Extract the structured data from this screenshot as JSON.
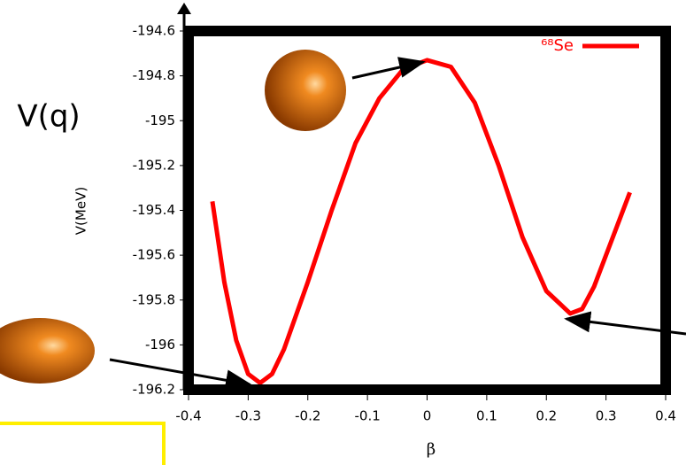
{
  "chart_data": {
    "type": "line",
    "ylabel": "V(MeV)",
    "xlabel": "β",
    "annotation": "V(q)",
    "x": [
      -0.36,
      -0.34,
      -0.32,
      -0.3,
      -0.28,
      -0.26,
      -0.24,
      -0.2,
      -0.16,
      -0.12,
      -0.08,
      -0.04,
      0.0,
      0.04,
      0.08,
      0.12,
      0.16,
      0.2,
      0.24,
      0.26,
      0.28,
      0.3,
      0.32,
      0.34
    ],
    "series": [
      {
        "name": "⁶⁸Se",
        "color": "#ff0000",
        "values": [
          -195.36,
          -195.72,
          -195.98,
          -196.13,
          -196.17,
          -196.13,
          -196.02,
          -195.72,
          -195.4,
          -195.1,
          -194.9,
          -194.77,
          -194.73,
          -194.76,
          -194.92,
          -195.2,
          -195.52,
          -195.76,
          -195.86,
          -195.84,
          -195.74,
          -195.6,
          -195.46,
          -195.32
        ]
      }
    ],
    "xlim": [
      -0.4,
      0.4
    ],
    "xticks": [
      -0.4,
      -0.3,
      -0.2,
      -0.1,
      0,
      0.1,
      0.2,
      0.3,
      0.4
    ],
    "ylim": [
      -196.2,
      -194.6
    ],
    "yticks": [
      -194.6,
      -194.8,
      -195,
      -195.2,
      -195.4,
      -195.6,
      -195.8,
      -196,
      -196.2
    ],
    "legend": "upper right"
  }
}
